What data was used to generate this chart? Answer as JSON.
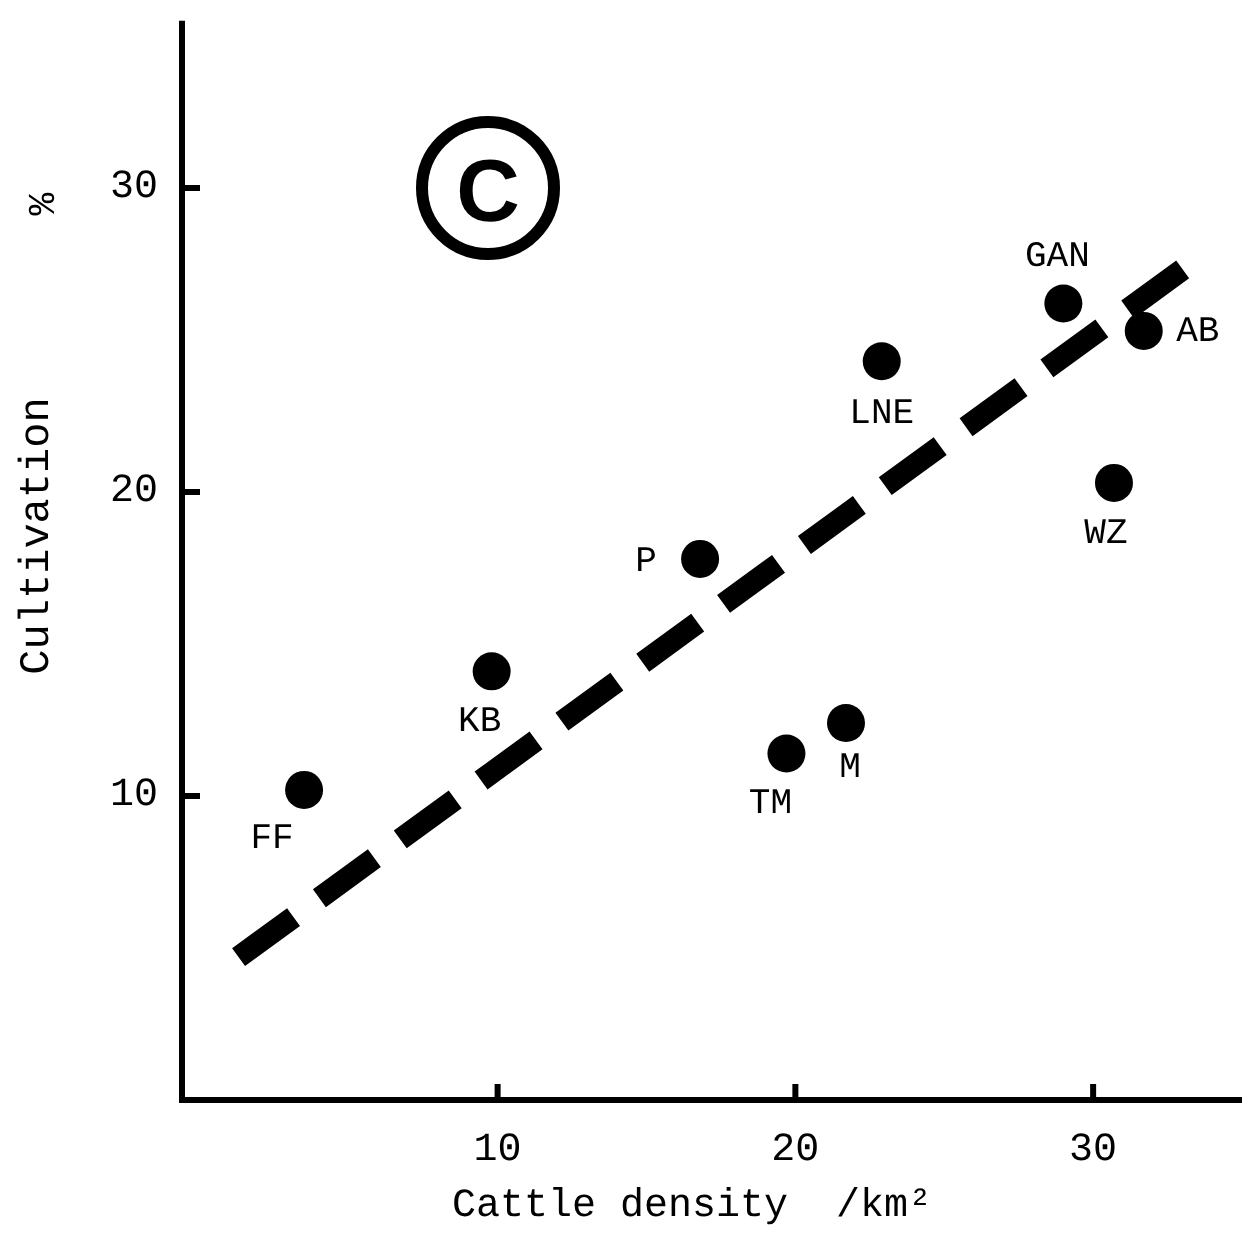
{
  "chart_data": {
    "type": "scatter",
    "xlabel": "Cattle density  /km²",
    "ylabel": "Cultivation",
    "xlim": [
      -0.6,
      35
    ],
    "ylim": [
      0,
      35.5
    ],
    "xticks": [
      10,
      20,
      30
    ],
    "yticks": [
      10,
      20,
      30
    ],
    "grid": false,
    "series": [
      {
        "color": "#000000",
        "marker": "circle",
        "x": [
          3.5,
          9.8,
          16.8,
          19.7,
          21.7,
          22.9,
          29,
          31.7,
          30.7
        ],
        "values": [
          10.2,
          14.1,
          17.8,
          11.4,
          12.4,
          24.3,
          26.2,
          25.3,
          20.3
        ]
      },
      {
        "type": "line",
        "color": "#000000",
        "line_style": "dashed",
        "x": [
          1.3,
          33.4
        ],
        "values": [
          4.7,
          27.6
        ]
      }
    ],
    "annotations": [
      "C",
      "%",
      {
        "text": "FF",
        "x": 3.5,
        "y": 10.2
      },
      {
        "text": "KB",
        "x": 9.8,
        "y": 14.1
      },
      {
        "text": "P",
        "x": 16.8,
        "y": 17.8
      },
      {
        "text": "TM",
        "x": 19.7,
        "y": 11.4
      },
      {
        "text": "M",
        "x": 21.7,
        "y": 12.4
      },
      {
        "text": "LNE",
        "x": 22.9,
        "y": 24.3
      },
      {
        "text": "GAN",
        "x": 29,
        "y": 26.2
      },
      {
        "text": "AB",
        "x": 31.7,
        "y": 25.3
      },
      {
        "text": "WZ",
        "x": 30.7,
        "y": 20.3
      }
    ]
  }
}
